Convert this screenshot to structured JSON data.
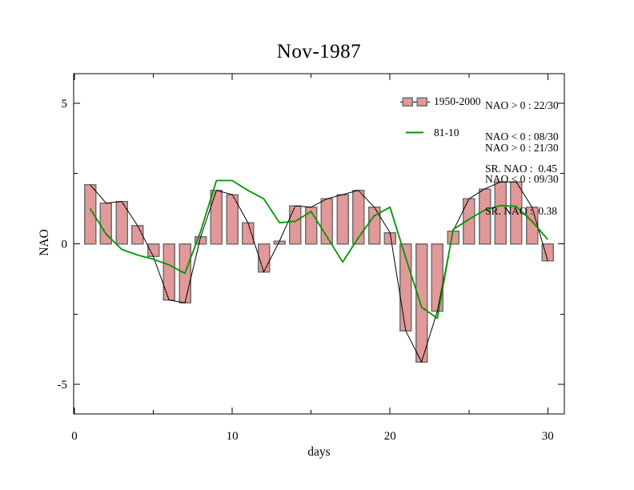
{
  "title": "Nov-1987",
  "axes": {
    "x_label": "days",
    "y_label": "NAO"
  },
  "legend": {
    "bars_label": "1950-2000",
    "line_label": "81-10"
  },
  "stats": {
    "bars": {
      "l1": "NAO > 0 : 22/30",
      "l2": "NAO < 0 : 08/30",
      "l3": "SR. NAO :  0.45"
    },
    "clim": {
      "l1": "NAO > 0 : 21/30",
      "l2": "NAO < 0 : 09/30",
      "l3": "SR. NAO :  0.38"
    }
  },
  "colors": {
    "background": "#ffffff",
    "frame": "#000000",
    "bar_hatch_red": "#c43232",
    "bar_fill_white": "#ffffff",
    "bar_edge_gray": "#6e6e6e",
    "daily_line_black": "#000000",
    "climatology_green": "#009600",
    "text": "#000000"
  },
  "chart_data": {
    "type": "bar",
    "title": "Nov-1987",
    "xlabel": "days",
    "ylabel": "NAO",
    "xlim": [
      -0.05,
      31.05
    ],
    "ylim": [
      -6.05,
      6.05
    ],
    "x_major_ticks": [
      0,
      10,
      20,
      30
    ],
    "x_minor_ticks": [
      5,
      15,
      25
    ],
    "y_major_ticks": [
      -5,
      0,
      5
    ],
    "y_minor_ticks": [
      -2.5,
      2.5
    ],
    "grid": false,
    "frame_ticks_mirrored": true,
    "legend_position": "inside-top-right",
    "categories": [
      1,
      2,
      3,
      4,
      5,
      6,
      7,
      8,
      9,
      10,
      11,
      12,
      13,
      14,
      15,
      16,
      17,
      18,
      19,
      20,
      21,
      22,
      23,
      24,
      25,
      26,
      27,
      28,
      29,
      30
    ],
    "series": [
      {
        "name": "1950-2000",
        "type": "bar",
        "style": "red-crosshatch-bars-with-black-connector-line",
        "values": [
          2.1,
          1.45,
          1.5,
          0.65,
          -0.45,
          -2.0,
          -2.1,
          0.25,
          1.9,
          1.75,
          0.75,
          -1.0,
          0.1,
          1.35,
          1.3,
          1.6,
          1.75,
          1.9,
          1.3,
          0.4,
          -3.1,
          -4.2,
          -2.4,
          0.45,
          1.6,
          1.95,
          2.2,
          2.2,
          1.3,
          -0.6
        ]
      },
      {
        "name": "81-10",
        "type": "line",
        "style": "green-line",
        "values": [
          1.25,
          0.35,
          -0.2,
          -0.4,
          -0.55,
          -0.75,
          -1.05,
          0.45,
          2.25,
          2.25,
          1.9,
          1.6,
          0.75,
          0.8,
          1.15,
          0.25,
          -0.65,
          0.22,
          1.0,
          1.3,
          -0.5,
          -2.25,
          -2.65,
          0.5,
          0.87,
          1.2,
          1.36,
          1.33,
          0.8,
          0.15
        ]
      }
    ]
  }
}
